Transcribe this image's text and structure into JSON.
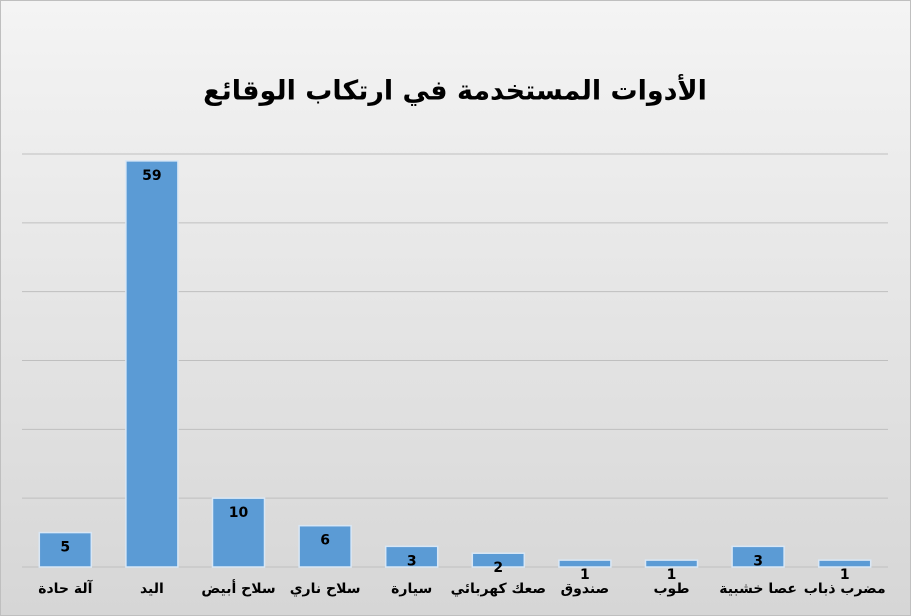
{
  "chart_data": {
    "type": "bar",
    "title": "الأدوات المستخدمة في ارتكاب الوقائع",
    "categories": [
      "آلة حادة",
      "اليد",
      "سلاح أبيض",
      "سلاح ناري",
      "سيارة",
      "صعك كهربائي",
      "صندوق",
      "طوب",
      "عصا خشبية",
      "مضرب ذباب"
    ],
    "values": [
      5,
      59,
      10,
      6,
      3,
      2,
      1,
      1,
      3,
      1
    ],
    "color": "#5b9bd5",
    "ylim": [
      0,
      60
    ],
    "yticks": [
      0,
      10,
      20,
      30,
      40,
      50,
      60
    ],
    "grid": true,
    "tick_labels": false
  }
}
